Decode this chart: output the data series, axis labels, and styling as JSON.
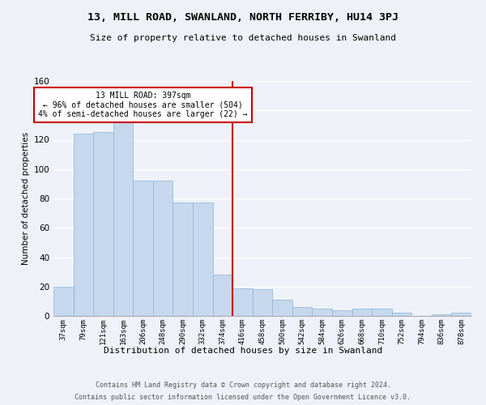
{
  "title1": "13, MILL ROAD, SWANLAND, NORTH FERRIBY, HU14 3PJ",
  "title2": "Size of property relative to detached houses in Swanland",
  "xlabel": "Distribution of detached houses by size in Swanland",
  "ylabel": "Number of detached properties",
  "bin_labels": [
    "37sqm",
    "79sqm",
    "121sqm",
    "163sqm",
    "206sqm",
    "248sqm",
    "290sqm",
    "332sqm",
    "374sqm",
    "416sqm",
    "458sqm",
    "500sqm",
    "542sqm",
    "584sqm",
    "626sqm",
    "668sqm",
    "710sqm",
    "752sqm",
    "794sqm",
    "836sqm",
    "878sqm"
  ],
  "bar_heights": [
    20,
    124,
    125,
    133,
    92,
    92,
    77,
    77,
    28,
    19,
    18,
    11,
    6,
    5,
    4,
    5,
    5,
    2,
    0,
    1,
    2
  ],
  "bar_color": "#c5d8ee",
  "bar_edgecolor": "#90b4d4",
  "vline_color": "#cc0000",
  "annotation_text": "13 MILL ROAD: 397sqm\n← 96% of detached houses are smaller (504)\n4% of semi-detached houses are larger (22) →",
  "annotation_box_color": "#cc0000",
  "footer1": "Contains HM Land Registry data © Crown copyright and database right 2024.",
  "footer2": "Contains public sector information licensed under the Open Government Licence v3.0.",
  "ylim": [
    0,
    160
  ],
  "background_color": "#eef2f8",
  "grid_color": "#ffffff"
}
